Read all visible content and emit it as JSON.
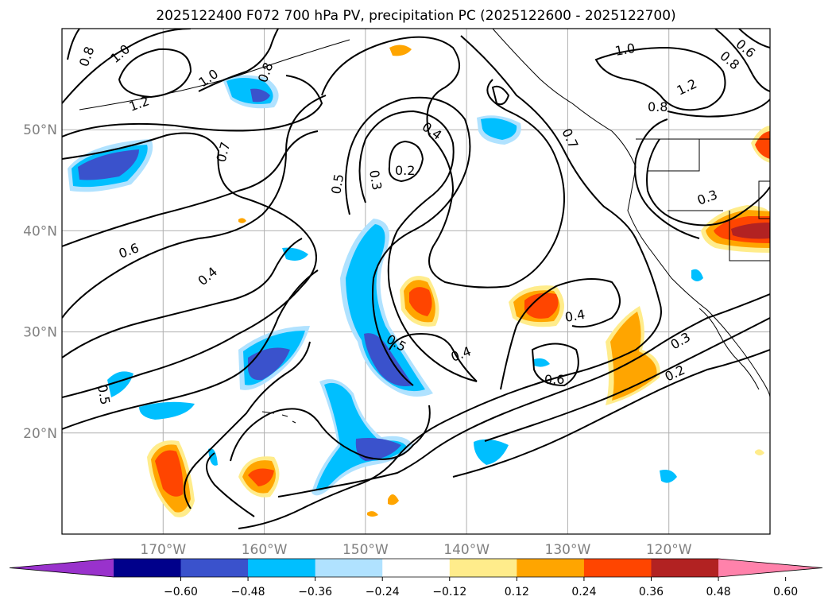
{
  "title": "2025122400 F072 700 hPa PV, precipitation PC (2025122600 - 2025122700)",
  "lat_labels": [
    "50°N",
    "40°N",
    "30°N",
    "20°N"
  ],
  "lat_values": [
    50,
    40,
    30,
    20
  ],
  "lon_labels": [
    "170°W",
    "160°W",
    "150°W",
    "140°W",
    "130°W",
    "120°W"
  ],
  "lon_values": [
    -170,
    -160,
    -150,
    -140,
    -130,
    -120
  ],
  "contour_labels": [
    "1.0",
    "0.8",
    "1.2",
    "1.0",
    "0.8",
    "0.7",
    "0.6",
    "0.4",
    "0.5",
    "0.5",
    "0.3",
    "0.2",
    "0.4",
    "0.5",
    "0.4",
    "0.7",
    "1.0",
    "1.2",
    "0.8",
    "0.6",
    "0.8",
    "0.3",
    "0.4",
    "0.6",
    "0.3",
    "0.2"
  ],
  "colorbar": {
    "ticks": [
      "−0.60",
      "−0.48",
      "−0.36",
      "−0.24",
      "−0.12",
      "0.12",
      "0.24",
      "0.36",
      "0.48",
      "0.60"
    ],
    "colors": [
      "#9932cc",
      "#00008b",
      "#3a52cc",
      "#00bfff",
      "#b0e2ff",
      "#ffffff",
      "#ffec8b",
      "#ffa500",
      "#ff4500",
      "#b22222",
      "#ff82ab"
    ]
  },
  "chart_data": {
    "type": "heatmap",
    "title": "2025122400 F072 700 hPa PV, precipitation PC (2025122600 - 2025122700)",
    "contour_field": "700 hPa PV",
    "contour_levels": [
      0.2,
      0.3,
      0.4,
      0.5,
      0.6,
      0.7,
      0.8,
      1.0,
      1.2
    ],
    "shaded_field": "precipitation PC",
    "shade_levels": [
      -0.6,
      -0.48,
      -0.36,
      -0.24,
      -0.12,
      0.12,
      0.24,
      0.36,
      0.48,
      0.6
    ],
    "lon_range": [
      -180,
      -110
    ],
    "lat_range": [
      10,
      60
    ],
    "grid": true,
    "colorbar": "bottom-horizontal"
  }
}
